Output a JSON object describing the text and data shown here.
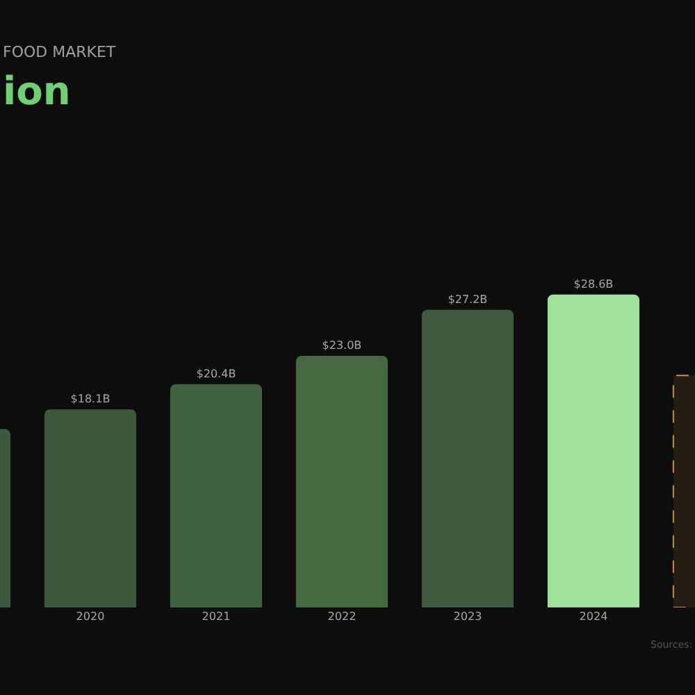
{
  "chart_data": {
    "type": "bar",
    "title": "ion",
    "subtitle": "FOOD MARKET",
    "categories": [
      null,
      "2020",
      "2021",
      "2022",
      "2023",
      "2024",
      null
    ],
    "series": [
      {
        "colors": [
          "#3b5a3d",
          "#3b5a3d",
          "#40623f",
          "#44683f",
          "#3c5b3f",
          "#9fe09a",
          null
        ],
        "values": [
          16.3,
          18.1,
          20.4,
          23.0,
          27.2,
          28.6,
          null
        ],
        "value_labels": [
          null,
          "$18.1B",
          "$20.4B",
          "$23.0B",
          "$27.2B",
          "$28.6B",
          null
        ]
      },
      {
        "color": "#c8913e",
        "line_style": "dashed",
        "values": [
          null,
          null,
          null,
          null,
          null,
          null,
          21.2
        ]
      }
    ],
    "grid": false,
    "annotations": [
      "Sources:"
    ]
  }
}
